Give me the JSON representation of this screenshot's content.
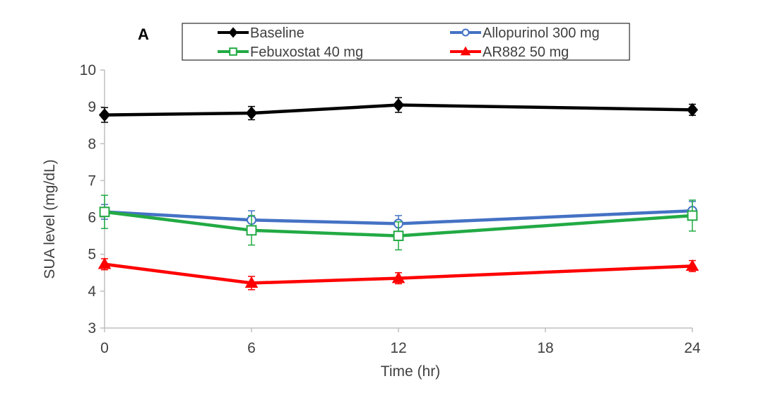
{
  "chart_data": {
    "type": "line",
    "panel_label": "A",
    "xlabel": "Time (hr)",
    "ylabel": "SUA level (mg/dL)",
    "xlim": [
      0,
      24
    ],
    "ylim": [
      3,
      10
    ],
    "xticks": [
      0,
      6,
      12,
      18,
      24
    ],
    "yticks": [
      3,
      4,
      5,
      6,
      7,
      8,
      9,
      10
    ],
    "x": [
      0,
      6,
      12,
      24
    ],
    "legend_position": "top",
    "series": [
      {
        "name": "Baseline",
        "color": "#000000",
        "marker": "diamond",
        "marker_fill": "#000000",
        "values": [
          8.78,
          8.83,
          9.05,
          8.92
        ],
        "errors": [
          0.2,
          0.18,
          0.2,
          0.15
        ]
      },
      {
        "name": "Allopurinol 300 mg",
        "color": "#4472c4",
        "marker": "circle",
        "marker_fill": "#ffffff",
        "values": [
          6.15,
          5.93,
          5.83,
          6.18
        ],
        "errors": [
          0.2,
          0.25,
          0.22,
          0.25
        ]
      },
      {
        "name": "Febuxostat 40 mg",
        "color": "#22aa44",
        "marker": "square",
        "marker_fill": "#ffffff",
        "values": [
          6.15,
          5.65,
          5.5,
          6.05
        ],
        "errors": [
          0.45,
          0.4,
          0.38,
          0.42
        ]
      },
      {
        "name": "AR882 50 mg",
        "color": "#ff0000",
        "marker": "triangle",
        "marker_fill": "#ff0000",
        "values": [
          4.73,
          4.22,
          4.35,
          4.68
        ],
        "errors": [
          0.15,
          0.18,
          0.15,
          0.15
        ]
      }
    ]
  }
}
